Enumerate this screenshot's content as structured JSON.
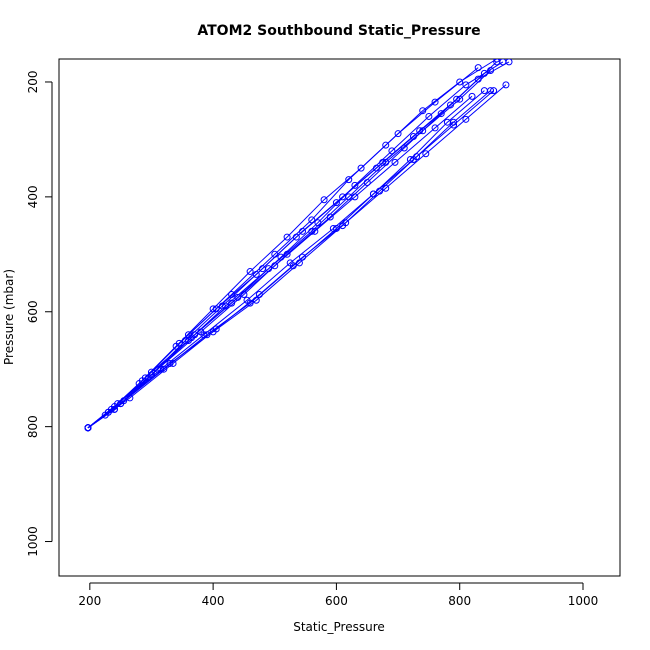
{
  "chart_data": {
    "type": "line",
    "title": "ATOM2 Southbound Static_Pressure",
    "xlabel": "Static_Pressure",
    "ylabel": "Pressure (mbar)",
    "xlim": [
      150,
      1060
    ],
    "ylim": [
      1060,
      160
    ],
    "y_inverted": true,
    "x_ticks": [
      200,
      400,
      600,
      800,
      1000
    ],
    "y_ticks": [
      200,
      400,
      600,
      800,
      1000
    ],
    "grid": false,
    "legend": "none",
    "color": "#0000ff",
    "marker": "open-circle",
    "series": [
      {
        "x": [
          197,
          230,
          290,
          360,
          430,
          500,
          560,
          620,
          680,
          740,
          800,
          860
        ],
        "y": [
          802,
          775,
          715,
          640,
          570,
          500,
          440,
          370,
          310,
          250,
          200,
          160
        ]
      },
      {
        "x": [
          197,
          240,
          300,
          370,
          440,
          510,
          570,
          630,
          690,
          750,
          810,
          870
        ],
        "y": [
          802,
          770,
          710,
          640,
          575,
          505,
          445,
          380,
          320,
          260,
          205,
          165
        ]
      },
      {
        "x": [
          197,
          245,
          310,
          380,
          450,
          520,
          590,
          650,
          710,
          770,
          830,
          880
        ],
        "y": [
          802,
          760,
          700,
          635,
          570,
          500,
          435,
          375,
          315,
          255,
          195,
          165
        ]
      },
      {
        "x": [
          197,
          250,
          320,
          390,
          460,
          530,
          600,
          660,
          720,
          780,
          840
        ],
        "y": [
          802,
          760,
          700,
          640,
          585,
          520,
          455,
          395,
          335,
          270,
          215
        ]
      },
      {
        "x": [
          197,
          255,
          330,
          400,
          470,
          540,
          610,
          670,
          730,
          790,
          850
        ],
        "y": [
          802,
          755,
          690,
          635,
          580,
          515,
          450,
          390,
          330,
          270,
          215
        ]
      },
      {
        "x": [
          197,
          240,
          300,
          360,
          420,
          490,
          560,
          620,
          680,
          740,
          800,
          850
        ],
        "y": [
          802,
          770,
          710,
          650,
          590,
          525,
          460,
          400,
          340,
          285,
          230,
          180
        ]
      },
      {
        "x": [
          197,
          225,
          280,
          340,
          400,
          460,
          520,
          580,
          640,
          700,
          760,
          830
        ],
        "y": [
          802,
          780,
          725,
          660,
          595,
          530,
          470,
          405,
          350,
          290,
          235,
          175
        ]
      },
      {
        "x": [
          197,
          235,
          295,
          355,
          415,
          480,
          545,
          610,
          675,
          735,
          795,
          860
        ],
        "y": [
          802,
          770,
          715,
          650,
          590,
          525,
          460,
          400,
          340,
          285,
          230,
          165
        ]
      },
      {
        "x": [
          197,
          250,
          315,
          385,
          455,
          525,
          595,
          660,
          725,
          790,
          855
        ],
        "y": [
          802,
          760,
          700,
          640,
          580,
          515,
          455,
          395,
          335,
          275,
          215
        ]
      },
      {
        "x": [
          197,
          230,
          285,
          345,
          405,
          470,
          535,
          600,
          665,
          725,
          785,
          840
        ],
        "y": [
          802,
          775,
          720,
          655,
          595,
          535,
          470,
          410,
          350,
          295,
          240,
          185
        ]
      },
      {
        "x": [
          197,
          265,
          335,
          405,
          475,
          545,
          615,
          680,
          745,
          810,
          875
        ],
        "y": [
          802,
          750,
          690,
          630,
          570,
          505,
          445,
          385,
          325,
          265,
          205
        ]
      },
      {
        "x": [
          197,
          240,
          300,
          365,
          430,
          500,
          565,
          630,
          695,
          760,
          820
        ],
        "y": [
          802,
          765,
          705,
          645,
          585,
          520,
          460,
          400,
          340,
          280,
          225
        ]
      }
    ]
  }
}
